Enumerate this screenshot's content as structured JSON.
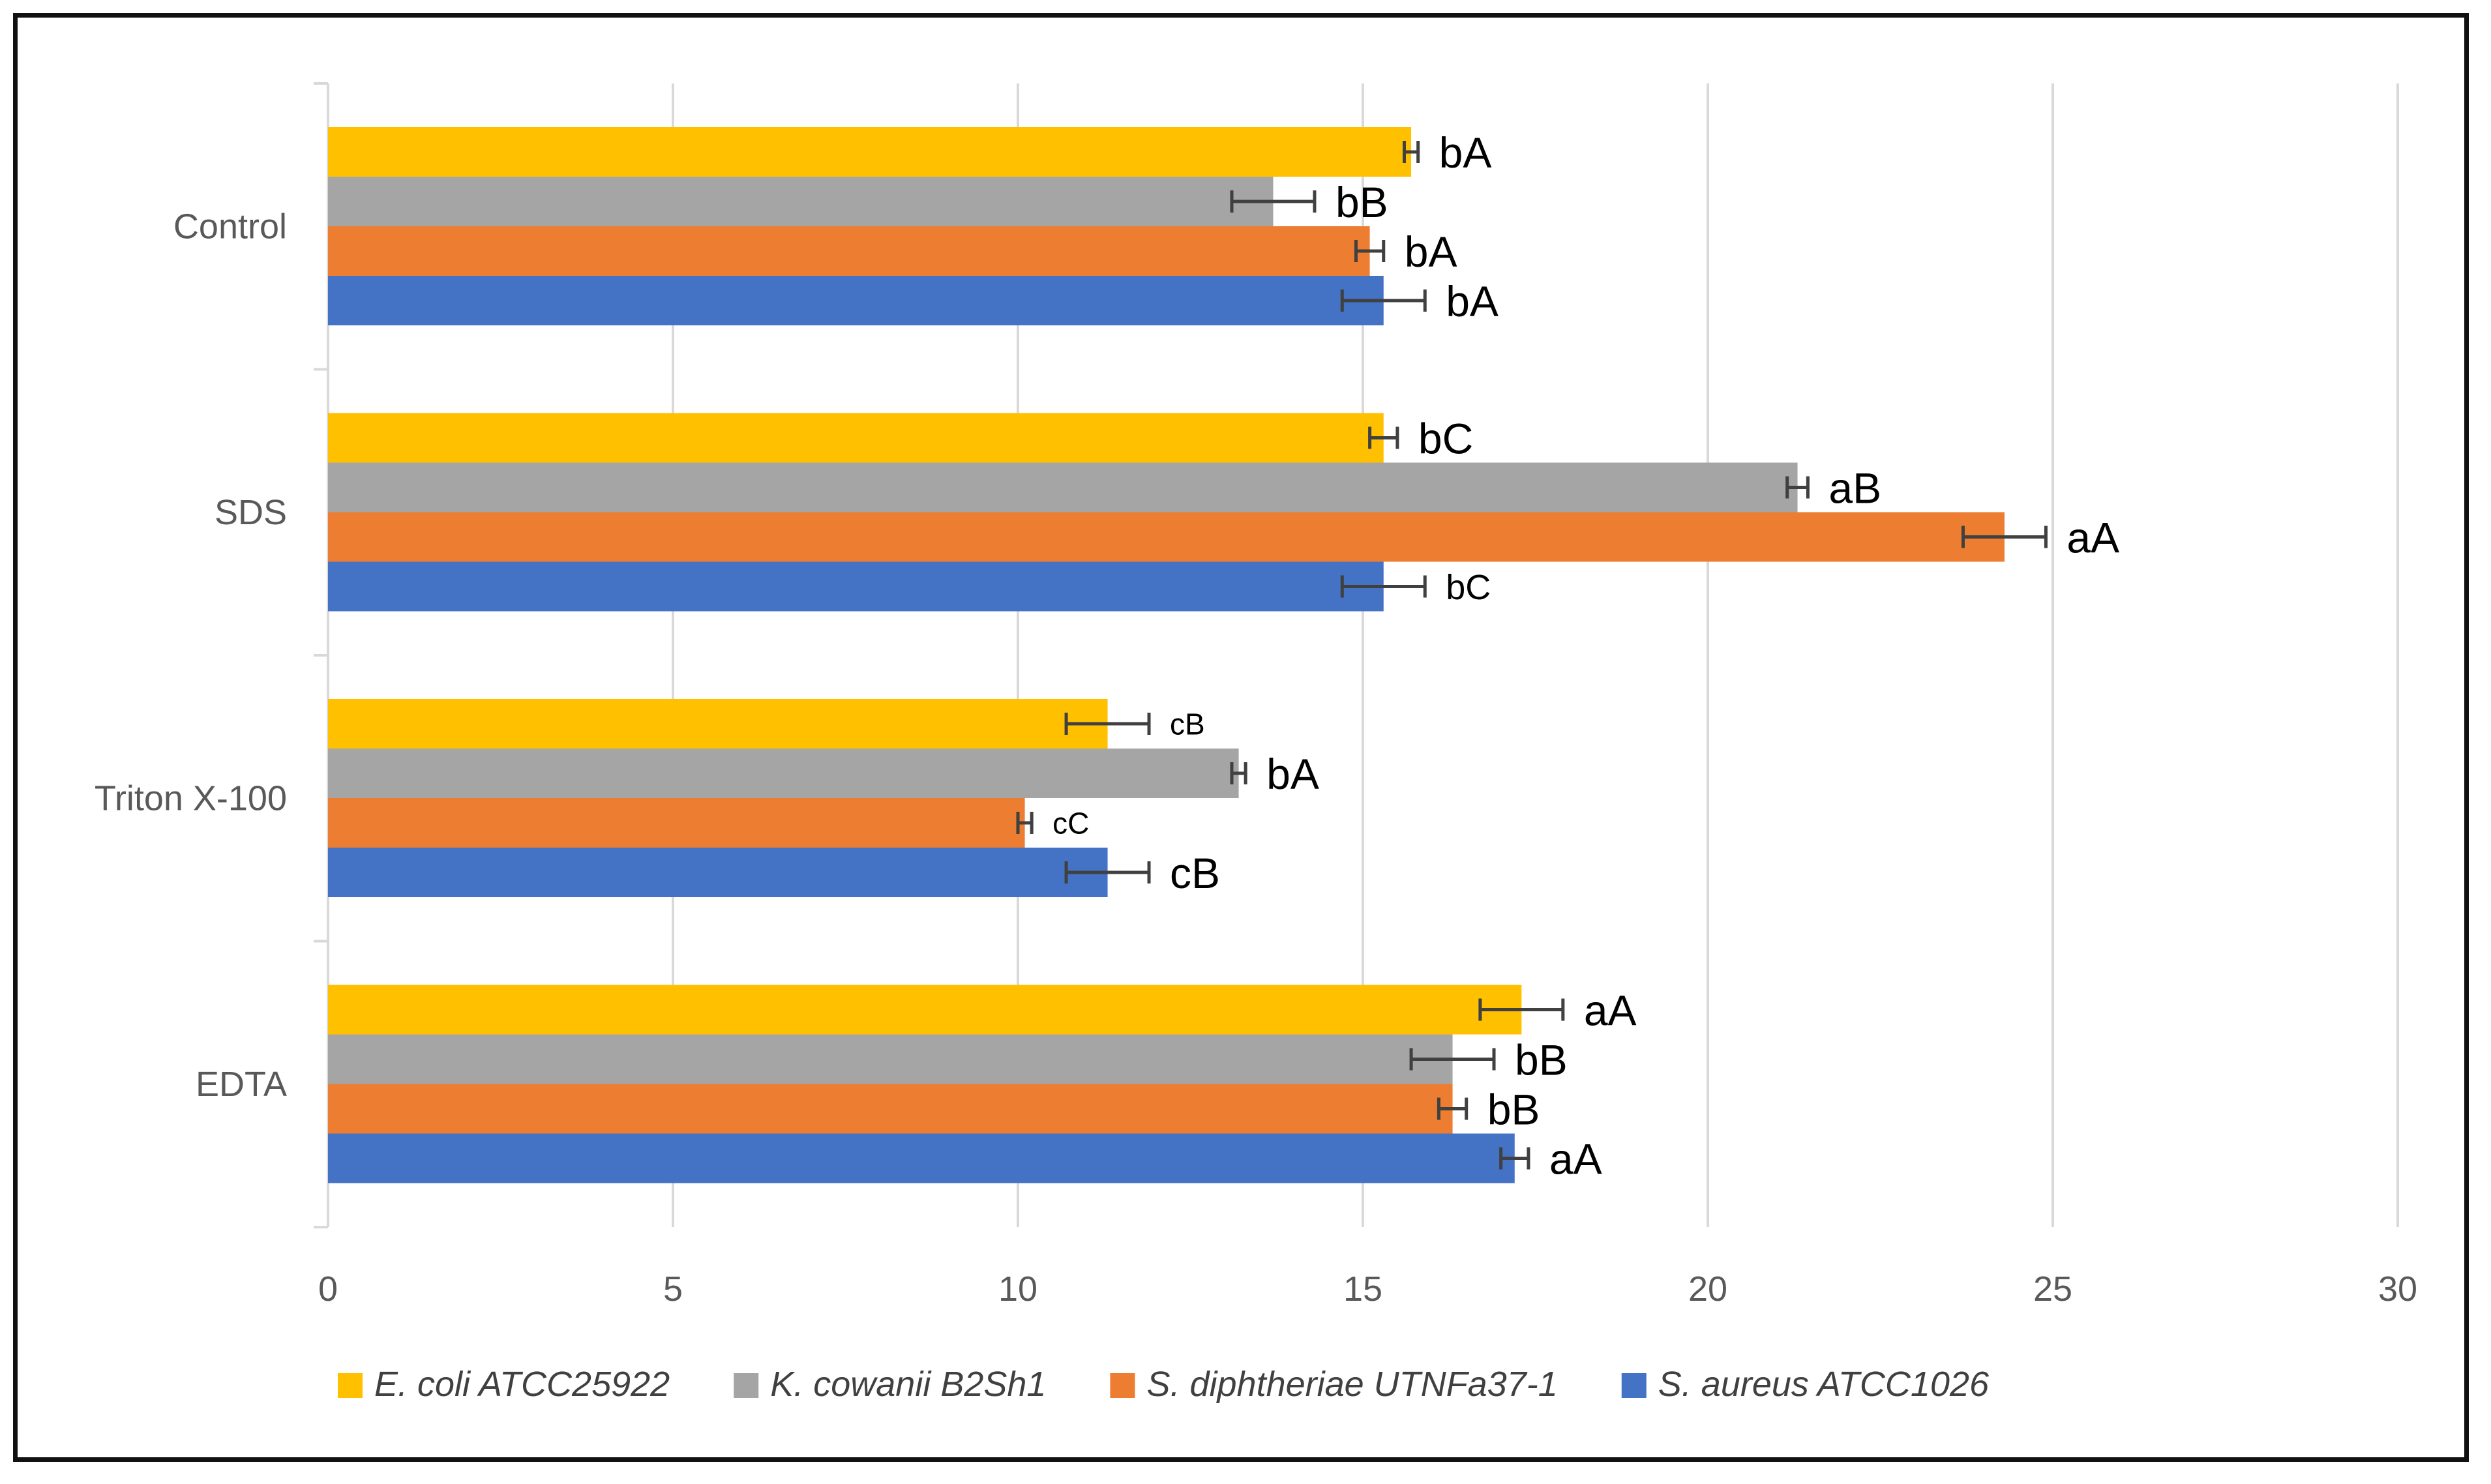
{
  "chart_data": {
    "type": "bar",
    "orientation": "horizontal",
    "title": "",
    "xlabel": "",
    "ylabel": "",
    "xlim": [
      0,
      30
    ],
    "xticks": [
      0,
      5,
      10,
      15,
      20,
      25,
      30
    ],
    "grid": true,
    "legend_position": "bottom",
    "categories": [
      "Control",
      "SDS",
      "Triton X-100",
      "EDTA"
    ],
    "series": [
      {
        "name": "E. coli ATCC25922",
        "color": "#FFC000",
        "values": [
          15.7,
          15.3,
          11.3,
          17.3
        ],
        "errors": [
          0.1,
          0.2,
          0.6,
          0.6
        ],
        "labels": [
          "bA",
          "bC",
          "cB",
          "aA"
        ]
      },
      {
        "name": "K. cowanii B2Sh1",
        "color": "#A5A5A5",
        "values": [
          13.7,
          21.3,
          13.2,
          16.3
        ],
        "errors": [
          0.6,
          0.15,
          0.1,
          0.6
        ],
        "labels": [
          "bB",
          "aB",
          "bA",
          "bB"
        ]
      },
      {
        "name": "S. diphtheriae UTNFa37-1",
        "color": "#ED7D31",
        "values": [
          15.1,
          24.3,
          10.1,
          16.3
        ],
        "errors": [
          0.2,
          0.6,
          0.1,
          0.2
        ],
        "labels": [
          "bA",
          "aA",
          "cC",
          "bB"
        ]
      },
      {
        "name": "S. aureus ATCC1026",
        "color": "#4472C4",
        "values": [
          15.3,
          15.3,
          11.3,
          17.2
        ],
        "errors": [
          0.6,
          0.6,
          0.6,
          0.2
        ],
        "labels": [
          "bA",
          "bC",
          "cB",
          "aA"
        ]
      }
    ]
  }
}
